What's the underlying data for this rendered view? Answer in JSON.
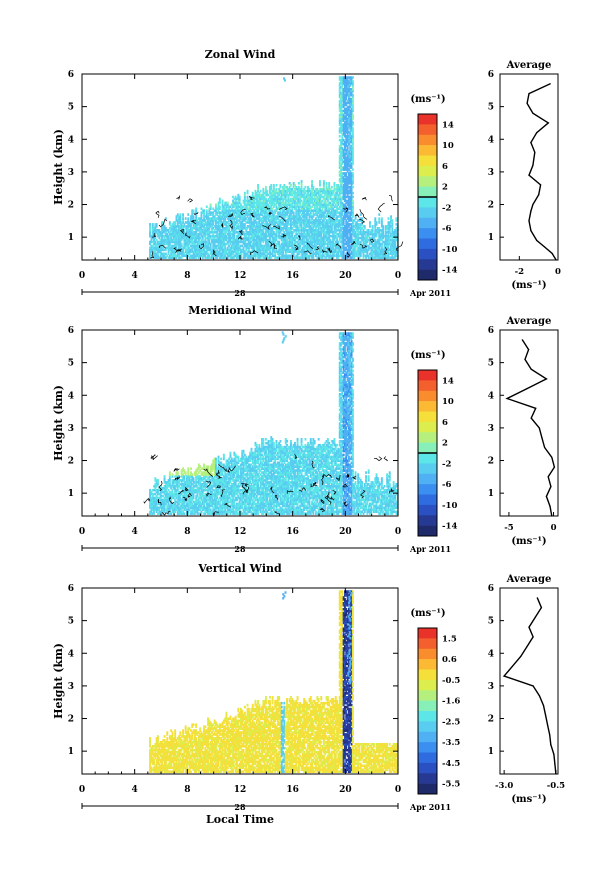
{
  "x_caption": "Local Time",
  "x_ticks": [
    "0",
    "4",
    "8",
    "12",
    "16",
    "20",
    "0"
  ],
  "date_label": "28",
  "month_label": "Apr 2011",
  "ylabel": "Height (km)",
  "y_ticks": [
    "1",
    "2",
    "3",
    "4",
    "5",
    "6"
  ],
  "avg_title": "Average",
  "unit_label": "(ms⁻¹)",
  "colormap": [
    "#1f2a6b",
    "#263a94",
    "#2b50c2",
    "#2e6ce0",
    "#3a8ff0",
    "#4fb0f3",
    "#58cdf0",
    "#5de6e8",
    "#86f0b8",
    "#b5f07e",
    "#dbee4d",
    "#f5df3a",
    "#fbb934",
    "#f98d2e",
    "#f35f2d",
    "#e8322a"
  ],
  "contour_color": "#000000",
  "chart_data": [
    {
      "type": "heatmap",
      "title": "Zonal Wind",
      "xlabel": "",
      "ylabel": "Height (km)",
      "xlim": [
        0,
        24
      ],
      "ylim": [
        0.3,
        6
      ],
      "colorbar": {
        "ticks": [
          "14",
          "10",
          "6",
          "2",
          "-2",
          "-6",
          "-10",
          "-14"
        ],
        "range": [
          -16,
          16
        ],
        "contour_level": 0
      },
      "profile": {
        "title": "Average",
        "xlabel": "(ms⁻¹)",
        "xlim": [
          -3,
          0
        ],
        "x_ticks": [
          "-2",
          "0"
        ],
        "tick_values": [
          -2,
          0
        ],
        "height": [
          0.3,
          0.5,
          0.7,
          0.9,
          1.2,
          1.5,
          1.8,
          2.0,
          2.3,
          2.6,
          2.9,
          3.2,
          3.6,
          3.9,
          4.2,
          4.5,
          4.8,
          5.1,
          5.4,
          5.7
        ],
        "values": [
          -0.1,
          -0.3,
          -0.7,
          -1.1,
          -1.4,
          -1.5,
          -1.4,
          -1.3,
          -1.0,
          -0.9,
          -1.5,
          -1.3,
          -1.2,
          -1.4,
          -1.1,
          -0.5,
          -1.3,
          -1.6,
          -1.5,
          -0.4
        ]
      }
    },
    {
      "type": "heatmap",
      "title": "Meridional Wind",
      "xlabel": "",
      "ylabel": "Height (km)",
      "xlim": [
        0,
        24
      ],
      "ylim": [
        0.3,
        6
      ],
      "colorbar": {
        "ticks": [
          "14",
          "10",
          "6",
          "2",
          "-2",
          "-6",
          "-10",
          "-14"
        ],
        "range": [
          -16,
          16
        ],
        "contour_level": 0
      },
      "profile": {
        "title": "Average",
        "xlabel": "(ms⁻¹)",
        "xlim": [
          -6,
          0.5
        ],
        "x_ticks": [
          "-5",
          "0"
        ],
        "tick_values": [
          -5,
          0
        ],
        "height": [
          0.3,
          0.6,
          0.9,
          1.2,
          1.5,
          1.8,
          2.1,
          2.4,
          2.7,
          3.0,
          3.3,
          3.6,
          3.9,
          4.2,
          4.5,
          4.8,
          5.1,
          5.4,
          5.7
        ],
        "values": [
          -0.2,
          -0.4,
          -0.8,
          -0.3,
          -0.6,
          0.1,
          -0.2,
          -1.0,
          -1.3,
          -1.6,
          -2.5,
          -2.0,
          -5.2,
          -3.0,
          -0.8,
          -2.5,
          -3.2,
          -2.8,
          -3.5
        ]
      }
    },
    {
      "type": "heatmap",
      "title": "Vertical Wind",
      "xlabel": "Local Time",
      "ylabel": "Height (km)",
      "xlim": [
        0,
        24
      ],
      "ylim": [
        0.3,
        6
      ],
      "colorbar": {
        "ticks": [
          "1.5",
          "0.6",
          "-0.5",
          "-1.6",
          "-2.5",
          "-3.5",
          "-4.5",
          "-5.5"
        ],
        "range": [
          -6,
          2
        ],
        "contour_level": null
      },
      "profile": {
        "title": "Average",
        "xlabel": "(ms⁻¹)",
        "xlim": [
          -3.2,
          -0.4
        ],
        "x_ticks": [
          "-3.0",
          "-0.5"
        ],
        "tick_values": [
          -3.0,
          -0.5
        ],
        "height": [
          0.3,
          0.6,
          0.9,
          1.2,
          1.5,
          1.8,
          2.1,
          2.4,
          2.7,
          3.0,
          3.3,
          3.6,
          3.9,
          4.2,
          4.5,
          4.8,
          5.1,
          5.4,
          5.7
        ],
        "values": [
          -0.5,
          -0.55,
          -0.6,
          -0.75,
          -0.8,
          -0.9,
          -1.0,
          -1.1,
          -1.3,
          -1.6,
          -3.0,
          -2.6,
          -2.2,
          -1.9,
          -1.6,
          -1.8,
          -1.5,
          -1.2,
          -1.4
        ]
      }
    }
  ]
}
